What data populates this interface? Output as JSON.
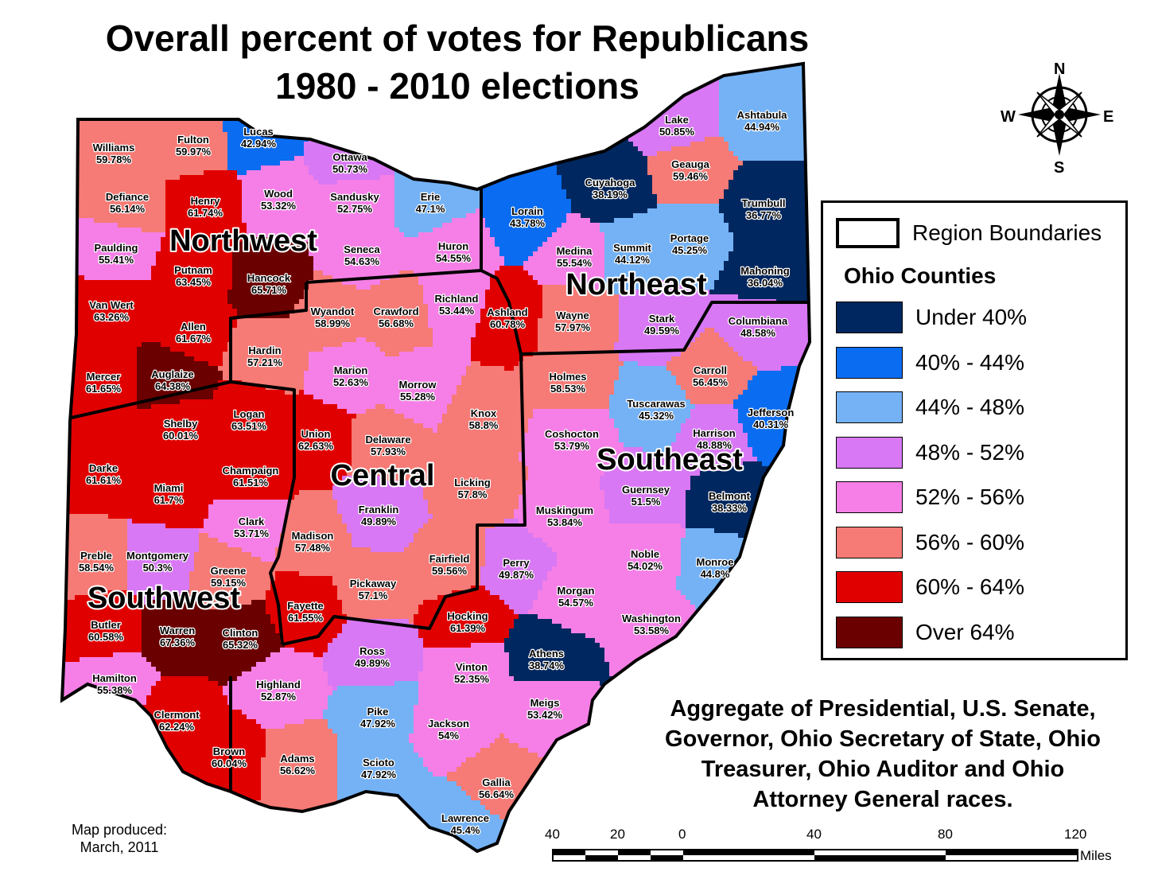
{
  "title_line1": "Overall percent of votes for Republicans",
  "title_line2": "1980 - 2010 elections",
  "compass": {
    "n": "N",
    "s": "S",
    "e": "E",
    "w": "W"
  },
  "legend": {
    "region_label": "Region Boundaries",
    "heading": "Ohio Counties",
    "classes": [
      {
        "label": "Under 40%",
        "color": "#00275f"
      },
      {
        "label": "40% - 44%",
        "color": "#0a6cf0"
      },
      {
        "label": "44% - 48%",
        "color": "#74b2f5"
      },
      {
        "label": "48% - 52%",
        "color": "#d878f4"
      },
      {
        "label": "52% - 56%",
        "color": "#f57fe6"
      },
      {
        "label": "56% - 60%",
        "color": "#f67a75"
      },
      {
        "label": "60% - 64%",
        "color": "#e10000"
      },
      {
        "label": "Over 64%",
        "color": "#6b0000"
      }
    ]
  },
  "regions": [
    "Northwest",
    "Northeast",
    "Central",
    "Southeast",
    "Southwest"
  ],
  "counties": [
    {
      "name": "Williams",
      "pct": "59.78%",
      "v": 59.78
    },
    {
      "name": "Fulton",
      "pct": "59.97%",
      "v": 59.97
    },
    {
      "name": "Lucas",
      "pct": "42.94%",
      "v": 42.94
    },
    {
      "name": "Ottawa",
      "pct": "50.73%",
      "v": 50.73
    },
    {
      "name": "Defiance",
      "pct": "56.14%",
      "v": 56.14
    },
    {
      "name": "Henry",
      "pct": "61.74%",
      "v": 61.74
    },
    {
      "name": "Wood",
      "pct": "53.32%",
      "v": 53.32
    },
    {
      "name": "Sandusky",
      "pct": "52.75%",
      "v": 52.75
    },
    {
      "name": "Erie",
      "pct": "47.1%",
      "v": 47.1
    },
    {
      "name": "Paulding",
      "pct": "55.41%",
      "v": 55.41
    },
    {
      "name": "Putnam",
      "pct": "63.45%",
      "v": 63.45
    },
    {
      "name": "Hancock",
      "pct": "65.71%",
      "v": 65.71
    },
    {
      "name": "Seneca",
      "pct": "54.63%",
      "v": 54.63
    },
    {
      "name": "Huron",
      "pct": "54.55%",
      "v": 54.55
    },
    {
      "name": "Van Wert",
      "pct": "63.26%",
      "v": 63.26
    },
    {
      "name": "Allen",
      "pct": "61.67%",
      "v": 61.67
    },
    {
      "name": "Wyandot",
      "pct": "58.99%",
      "v": 58.99
    },
    {
      "name": "Crawford",
      "pct": "56.68%",
      "v": 56.68
    },
    {
      "name": "Richland",
      "pct": "53.44%",
      "v": 53.44
    },
    {
      "name": "Ashland",
      "pct": "60.78%",
      "v": 60.78
    },
    {
      "name": "Hardin",
      "pct": "57.21%",
      "v": 57.21
    },
    {
      "name": "Mercer",
      "pct": "61.65%",
      "v": 61.65
    },
    {
      "name": "Auglaize",
      "pct": "64.38%",
      "v": 64.38
    },
    {
      "name": "Marion",
      "pct": "52.63%",
      "v": 52.63
    },
    {
      "name": "Morrow",
      "pct": "55.28%",
      "v": 55.28
    },
    {
      "name": "Shelby",
      "pct": "60.01%",
      "v": 60.01
    },
    {
      "name": "Logan",
      "pct": "63.51%",
      "v": 63.51
    },
    {
      "name": "Union",
      "pct": "62.63%",
      "v": 62.63
    },
    {
      "name": "Delaware",
      "pct": "57.93%",
      "v": 57.93
    },
    {
      "name": "Knox",
      "pct": "58.8%",
      "v": 58.8
    },
    {
      "name": "Darke",
      "pct": "61.61%",
      "v": 61.61
    },
    {
      "name": "Miami",
      "pct": "61.7%",
      "v": 61.7
    },
    {
      "name": "Champaign",
      "pct": "61.51%",
      "v": 61.51
    },
    {
      "name": "Licking",
      "pct": "57.8%",
      "v": 57.8
    },
    {
      "name": "Franklin",
      "pct": "49.89%",
      "v": 49.89
    },
    {
      "name": "Clark",
      "pct": "53.71%",
      "v": 53.71
    },
    {
      "name": "Madison",
      "pct": "57.48%",
      "v": 57.48
    },
    {
      "name": "Preble",
      "pct": "58.54%",
      "v": 58.54
    },
    {
      "name": "Montgomery",
      "pct": "50.3%",
      "v": 50.3
    },
    {
      "name": "Greene",
      "pct": "59.15%",
      "v": 59.15
    },
    {
      "name": "Fairfield",
      "pct": "59.56%",
      "v": 59.56
    },
    {
      "name": "Pickaway",
      "pct": "57.1%",
      "v": 57.1
    },
    {
      "name": "Fayette",
      "pct": "61.55%",
      "v": 61.55
    },
    {
      "name": "Butler",
      "pct": "60.58%",
      "v": 60.58
    },
    {
      "name": "Warren",
      "pct": "67.36%",
      "v": 67.36
    },
    {
      "name": "Clinton",
      "pct": "65.32%",
      "v": 65.32
    },
    {
      "name": "Hamilton",
      "pct": "55.38%",
      "v": 55.38
    },
    {
      "name": "Clermont",
      "pct": "62.24%",
      "v": 62.24
    },
    {
      "name": "Brown",
      "pct": "60.04%",
      "v": 60.04
    },
    {
      "name": "Highland",
      "pct": "52.87%",
      "v": 52.87
    },
    {
      "name": "Adams",
      "pct": "56.62%",
      "v": 56.62
    },
    {
      "name": "Ross",
      "pct": "49.89%",
      "v": 49.89
    },
    {
      "name": "Pike",
      "pct": "47.92%",
      "v": 47.92
    },
    {
      "name": "Scioto",
      "pct": "47.92%",
      "v": 47.92
    },
    {
      "name": "Vinton",
      "pct": "52.35%",
      "v": 52.35
    },
    {
      "name": "Jackson",
      "pct": "54%",
      "v": 54
    },
    {
      "name": "Hocking",
      "pct": "61.39%",
      "v": 61.39
    },
    {
      "name": "Perry",
      "pct": "49.87%",
      "v": 49.87
    },
    {
      "name": "Athens",
      "pct": "38.74%",
      "v": 38.74
    },
    {
      "name": "Meigs",
      "pct": "53.42%",
      "v": 53.42
    },
    {
      "name": "Gallia",
      "pct": "56.64%",
      "v": 56.64
    },
    {
      "name": "Lawrence",
      "pct": "45.4%",
      "v": 45.4
    },
    {
      "name": "Lake",
      "pct": "50.85%",
      "v": 50.85
    },
    {
      "name": "Ashtabula",
      "pct": "44.94%",
      "v": 44.94
    },
    {
      "name": "Geauga",
      "pct": "59.46%",
      "v": 59.46
    },
    {
      "name": "Cuyahoga",
      "pct": "38.19%",
      "v": 38.19
    },
    {
      "name": "Lorain",
      "pct": "43.78%",
      "v": 43.78
    },
    {
      "name": "Trumbull",
      "pct": "36.77%",
      "v": 36.77
    },
    {
      "name": "Medina",
      "pct": "55.54%",
      "v": 55.54
    },
    {
      "name": "Summit",
      "pct": "44.12%",
      "v": 44.12
    },
    {
      "name": "Portage",
      "pct": "45.25%",
      "v": 45.25
    },
    {
      "name": "Mahoning",
      "pct": "36.04%",
      "v": 36.04
    },
    {
      "name": "Wayne",
      "pct": "57.97%",
      "v": 57.97
    },
    {
      "name": "Stark",
      "pct": "49.59%",
      "v": 49.59
    },
    {
      "name": "Columbiana",
      "pct": "48.58%",
      "v": 48.58
    },
    {
      "name": "Holmes",
      "pct": "58.53%",
      "v": 58.53
    },
    {
      "name": "Carroll",
      "pct": "56.45%",
      "v": 56.45
    },
    {
      "name": "Tuscarawas",
      "pct": "45.32%",
      "v": 45.32
    },
    {
      "name": "Jefferson",
      "pct": "40.31%",
      "v": 40.31
    },
    {
      "name": "Coshocton",
      "pct": "53.79%",
      "v": 53.79
    },
    {
      "name": "Harrison",
      "pct": "48.88%",
      "v": 48.88
    },
    {
      "name": "Guernsey",
      "pct": "51.5%",
      "v": 51.5
    },
    {
      "name": "Belmont",
      "pct": "38.33%",
      "v": 38.33
    },
    {
      "name": "Muskingum",
      "pct": "53.84%",
      "v": 53.84
    },
    {
      "name": "Noble",
      "pct": "54.02%",
      "v": 54.02
    },
    {
      "name": "Monroe",
      "pct": "44.8%",
      "v": 44.8
    },
    {
      "name": "Morgan",
      "pct": "54.57%",
      "v": 54.57
    },
    {
      "name": "Washington",
      "pct": "53.58%",
      "v": 53.58
    }
  ],
  "note_lines": [
    "Aggregate of Presidential, U.S. Senate,",
    "Governor, Ohio Secretary of State, Ohio",
    "Treasurer, Ohio Auditor and Ohio",
    "Attorney General races."
  ],
  "credit_line1": "Map produced:",
  "credit_line2": "March, 2011",
  "scale": {
    "labels": [
      "40",
      "20",
      "0",
      "40",
      "80",
      "120"
    ],
    "unit": "Miles"
  }
}
